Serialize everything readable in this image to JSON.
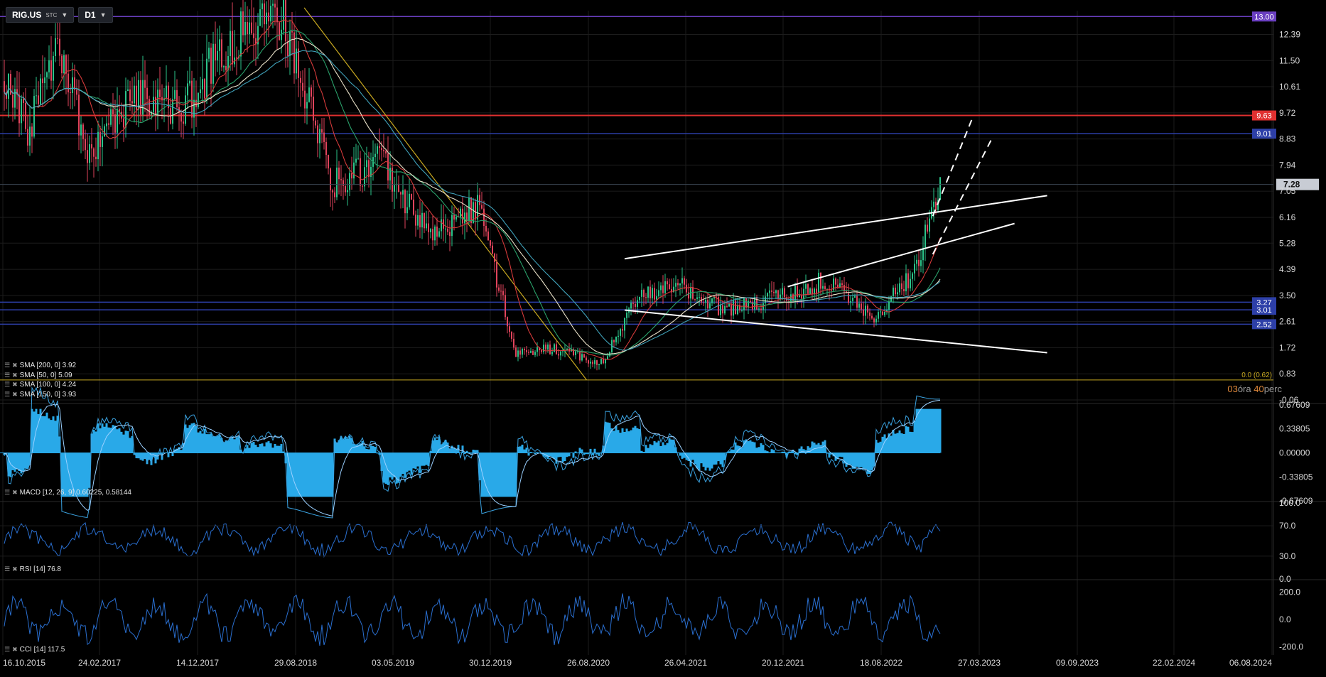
{
  "toolbar": {
    "symbol": "RIG.US",
    "symbol_sub": "STC",
    "timeframe": "D1",
    "caret_icon": "chevron-down-icon"
  },
  "timer": {
    "hours": "03",
    "hours_unit": "óra",
    "minutes": "40",
    "minutes_unit": "perc"
  },
  "colors": {
    "background": "#000000",
    "grid": "#1c1c1c",
    "candle_up": "#2bc48a",
    "candle_down": "#e0445c",
    "sma200": "#3fa0b8",
    "sma50": "#d43a3a",
    "sma100": "#2aa06a",
    "sma150": "#e8e0c8",
    "macd": "#29a9e8",
    "oscillator": "#2a6fd0",
    "level_blue": "#2d3fa8",
    "level_red": "#e03030",
    "level_purple": "#6a3fc0",
    "fib": "#c8a820",
    "trendline": "#ffffff"
  },
  "chart_data": [
    {
      "type": "candlestick",
      "name": "price",
      "x_ticks": [
        "16.10.2015",
        "24.02.2017",
        "14.12.2017",
        "29.08.2018",
        "03.05.2019",
        "30.12.2019",
        "26.08.2020",
        "26.04.2021",
        "20.12.2021",
        "18.08.2022",
        "27.03.2023",
        "09.09.2023",
        "22.02.2024",
        "06.08.2024"
      ],
      "y_ticks": [
        "12.39",
        "11.50",
        "10.61",
        "9.72",
        "8.83",
        "7.94",
        "7.05",
        "6.16",
        "5.28",
        "4.39",
        "3.50",
        "2.61",
        "1.72",
        "0.83",
        "-0.06"
      ],
      "ylim": [
        -0.06,
        13.2
      ],
      "x": [
        "2015-10",
        "2016-03",
        "2016-08",
        "2017-01",
        "2017-06",
        "2017-11",
        "2018-04",
        "2018-08",
        "2018-12",
        "2019-04",
        "2019-08",
        "2019-12",
        "2020-03",
        "2020-06",
        "2020-10",
        "2021-01",
        "2021-04",
        "2021-08",
        "2021-12",
        "2022-04",
        "2022-08",
        "2022-11",
        "2023-01"
      ],
      "close": [
        10.8,
        9.2,
        11.8,
        8.3,
        10.2,
        9.9,
        12.5,
        12.9,
        7.3,
        8.0,
        5.6,
        6.6,
        1.5,
        1.7,
        1.2,
        3.5,
        3.9,
        3.0,
        3.4,
        4.0,
        2.8,
        4.3,
        7.28
      ],
      "last_price_label": "7.28",
      "horizontal_levels": [
        {
          "label": "13.00",
          "value": 13.0,
          "color": "purple"
        },
        {
          "label": "9.63",
          "value": 9.63,
          "color": "red"
        },
        {
          "label": "9.01",
          "value": 9.01,
          "color": "blue"
        },
        {
          "label": "3.27",
          "value": 3.27,
          "color": "blue"
        },
        {
          "label": "3.01",
          "value": 3.01,
          "color": "blue"
        },
        {
          "label": "2.52",
          "value": 2.52,
          "color": "blue"
        }
      ],
      "fib_label": "0.0 (0.62)",
      "fib_value": 0.62,
      "legend": [
        {
          "label": "SMA [200, 0] 3.92",
          "color": "sma200"
        },
        {
          "label": "SMA [50, 0] 5.09",
          "color": "sma50"
        },
        {
          "label": "SMA [100, 0] 4.24",
          "color": "sma100"
        },
        {
          "label": "SMA [150, 0] 3.93",
          "color": "sma150"
        }
      ]
    },
    {
      "type": "bar",
      "name": "MACD",
      "legend": "MACD [12, 26, 9] 0.60225, 0.58144",
      "y_ticks": [
        "0.67609",
        "0.33805",
        "0.00000",
        "-0.33805",
        "-0.67609"
      ],
      "ylim": [
        -0.67609,
        0.67609
      ]
    },
    {
      "type": "line",
      "name": "RSI",
      "legend": "RSI [14] 76.8",
      "y_ticks": [
        "100.0",
        "70.0",
        "30.0",
        "0.0"
      ],
      "ylim": [
        0,
        100
      ]
    },
    {
      "type": "line",
      "name": "CCI",
      "legend": "CCI [14] 117.5",
      "y_ticks": [
        "200.0",
        "0.0",
        "-200.0"
      ],
      "ylim": [
        -260,
        280
      ]
    }
  ]
}
